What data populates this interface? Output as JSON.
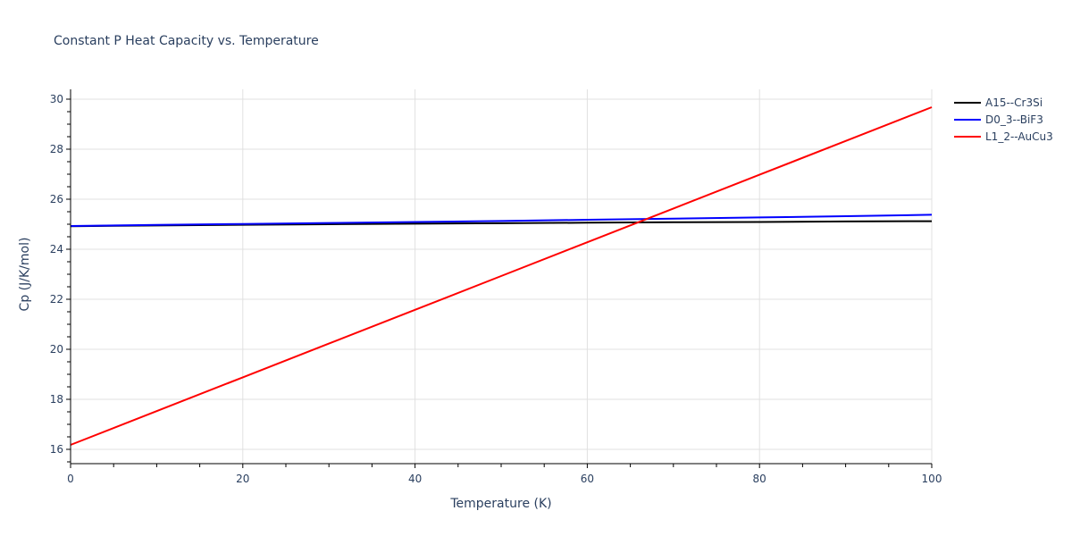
{
  "chart_data": {
    "type": "line",
    "title": "Constant P Heat Capacity vs. Temperature",
    "xlabel": "Temperature (K)",
    "ylabel": "Cp (J/K/mol)",
    "xlim": [
      0,
      100
    ],
    "ylim": [
      15.4,
      30.4
    ],
    "x_ticks": [
      0,
      20,
      40,
      60,
      80,
      100
    ],
    "y_ticks": [
      16,
      18,
      20,
      22,
      24,
      26,
      28,
      30
    ],
    "grid": true,
    "legend_position": "right-top",
    "x": [
      0,
      10,
      20,
      30,
      40,
      50,
      60,
      70,
      80,
      90,
      100
    ],
    "series": [
      {
        "name": "A15--Cr3Si",
        "color": "#000000",
        "values": [
          24.92,
          24.95,
          24.98,
          25.0,
          25.02,
          25.04,
          25.06,
          25.08,
          25.09,
          25.11,
          25.12
        ]
      },
      {
        "name": "D0_3--BiF3",
        "color": "#0000ff",
        "values": [
          24.93,
          24.97,
          25.01,
          25.05,
          25.09,
          25.13,
          25.18,
          25.22,
          25.27,
          25.32,
          25.38
        ]
      },
      {
        "name": "L1_2--AuCu3",
        "color": "#ff0000",
        "values": [
          16.18,
          17.53,
          18.88,
          20.23,
          21.58,
          22.93,
          24.28,
          25.63,
          26.98,
          28.33,
          29.68
        ]
      }
    ]
  }
}
